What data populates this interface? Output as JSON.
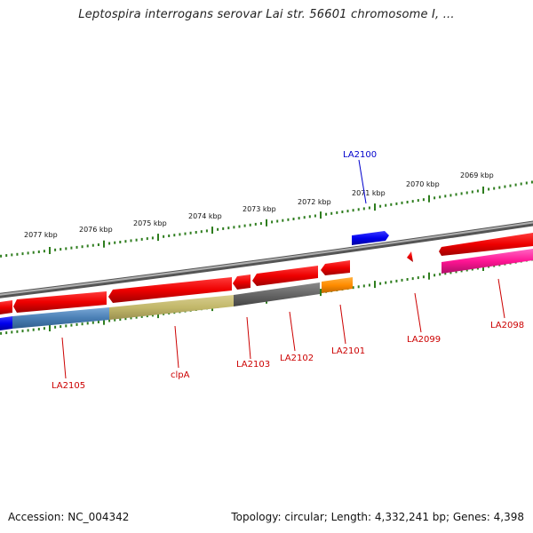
{
  "title": "Leptospira interrogans serovar Lai str. 56601 chromosome I, ...",
  "footer": {
    "accession": "Accession: NC_004342",
    "summary": "Topology: circular; Length: 4,332,241 bp; Genes: 4,398"
  },
  "scale": {
    "tick_color": "#2e7d1e",
    "labels": [
      "2077 kbp",
      "2076 kbp",
      "2075 kbp",
      "2074 kbp",
      "2073 kbp",
      "2072 kbp",
      "2071 kbp",
      "2070 kbp",
      "2069 kbp"
    ]
  },
  "genes": [
    {
      "name": "LA2100",
      "color": "#0000ee"
    },
    {
      "name": "LA2105",
      "color": "#dd0000"
    },
    {
      "name": "clpA",
      "color": "#dd0000"
    },
    {
      "name": "LA2103",
      "color": "#dd0000"
    },
    {
      "name": "LA2102",
      "color": "#dd0000"
    },
    {
      "name": "LA2101",
      "color": "#dd0000"
    },
    {
      "name": "LA2099",
      "color": "#dd0000"
    },
    {
      "name": "LA2098",
      "color": "#dd0000"
    }
  ],
  "colors": {
    "cds_forward": "#0000ee",
    "cds_reverse": "#ee0000",
    "backbone": "#777777"
  }
}
